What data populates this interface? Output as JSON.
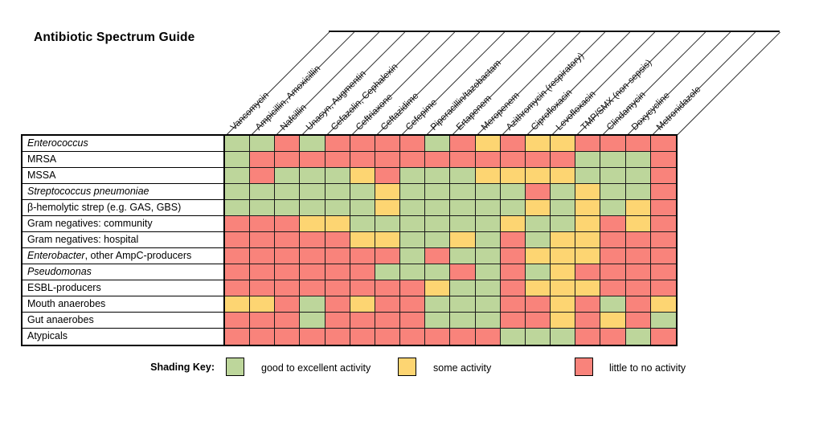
{
  "title": "Antibiotic Spectrum Guide",
  "legend": {
    "title": "Shading Key:",
    "items": [
      {
        "label": "good to excellent activity",
        "level": "good"
      },
      {
        "label": "some activity",
        "level": "some"
      },
      {
        "label": "little to no activity",
        "level": "none"
      }
    ]
  },
  "colors": {
    "good": "#bdd69b",
    "some": "#fdd572",
    "none": "#f9837b",
    "grid_line": "#1a1a1a"
  },
  "chart_data": {
    "type": "heatmap",
    "title": "Antibiotic Spectrum Guide",
    "legend_position": "bottom",
    "columns": [
      "Vancomycin",
      "Ampicillin, Amoxicillin",
      "Nafcillin",
      "Unasyn, Augmentin",
      "Cefazolin, Cephalexin",
      "Ceftriaxone",
      "Ceftazidime",
      "Cefepime",
      "Piperacillin/tazobactam",
      "Ertapenem",
      "Meropenem",
      "Azithromycin (respiratory)",
      "Ciprofloxacin",
      "Levofloxacin",
      "TMP/SMX (non-sepsis)",
      "Clindamycin",
      "Doxycycline",
      "Metronidazole"
    ],
    "rows": [
      {
        "parts": [
          [
            "Enterococcus",
            true
          ]
        ]
      },
      {
        "parts": [
          [
            "MRSA",
            false
          ]
        ]
      },
      {
        "parts": [
          [
            "MSSA",
            false
          ]
        ]
      },
      {
        "parts": [
          [
            "Streptococcus pneumoniae",
            true
          ]
        ]
      },
      {
        "parts": [
          [
            "β-hemolytic strep (e.g. GAS, GBS)",
            false
          ]
        ]
      },
      {
        "parts": [
          [
            "Gram negatives: community",
            false
          ]
        ]
      },
      {
        "parts": [
          [
            "Gram negatives: hospital",
            false
          ]
        ]
      },
      {
        "parts": [
          [
            "Enterobacter",
            true
          ],
          [
            ", other AmpC-producers",
            false
          ]
        ]
      },
      {
        "parts": [
          [
            "Pseudomonas",
            true
          ]
        ]
      },
      {
        "parts": [
          [
            "ESBL-producers",
            false
          ]
        ]
      },
      {
        "parts": [
          [
            "Mouth anaerobes",
            false
          ]
        ]
      },
      {
        "parts": [
          [
            "Gut anaerobes",
            false
          ]
        ]
      },
      {
        "parts": [
          [
            "Atypicals",
            false
          ]
        ]
      }
    ],
    "value_legend": {
      "G": "good to excellent activity",
      "Y": "some activity",
      "R": "little to no activity"
    },
    "matrix": [
      "GGRGRRRRGRYRYYRRRR",
      "GRRRRRRRRRRRRRGGGR",
      "GRGGGYRGGGYYYYGGGR",
      "GGGGGGYGGGGGRGYGGR",
      "GGGGGGYGGGGGYGYGYR",
      "RRRYYGGGGGGYGGYRYR",
      "RRRRRYYGGYGRGYYRRR",
      "RRRRRRRGRGGRYYYRRR",
      "RRRRRRGGGRGRGYRRRR",
      "RRRRRRRRYGGRYYYRRR",
      "YYRGRYRRGGGRRYRGRY",
      "RRRGRRRRGGGRRYRYRG",
      "RRRRRRRRRRRGGGRRGR"
    ]
  }
}
